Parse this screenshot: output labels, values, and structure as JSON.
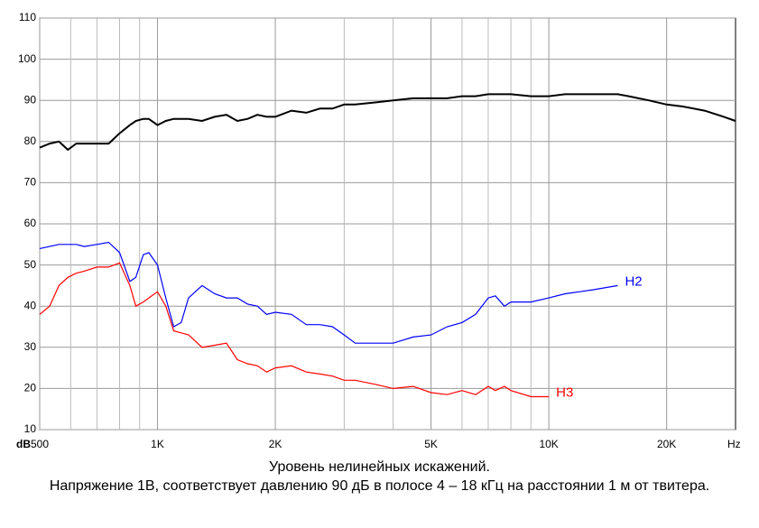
{
  "chart_data": {
    "type": "line",
    "title": "Уровень нелинейных искажений.",
    "subtitle": "Напряжение 1В, соответствует давлению 90 дБ в полосе 4 – 18 кГц на расстоянии 1 м от твитера.",
    "y_label": "dB",
    "x_label": "Hz",
    "log_x": true,
    "grid": true,
    "x": [
      500,
      530,
      560,
      590,
      620,
      650,
      700,
      750,
      800,
      850,
      880,
      920,
      950,
      1000,
      1050,
      1100,
      1150,
      1200,
      1300,
      1400,
      1500,
      1600,
      1700,
      1800,
      1900,
      2000,
      2200,
      2400,
      2600,
      2800,
      3000,
      3200,
      3600,
      4000,
      4500,
      5000,
      5500,
      6000,
      6500,
      7000,
      7300,
      7700,
      8000,
      9000,
      10000,
      11000,
      12000,
      13000,
      15000,
      16000,
      18000,
      20000,
      22000,
      25000,
      28000,
      30000
    ],
    "series": [
      {
        "color": "#000000",
        "values": [
          78.5,
          79.5,
          80,
          78,
          79.5,
          79.5,
          79.5,
          79.5,
          82,
          84,
          85,
          85.5,
          85.5,
          84,
          85,
          85.5,
          85.5,
          85.5,
          85,
          86,
          86.5,
          85,
          85.5,
          86.5,
          86,
          86,
          87.5,
          87,
          88,
          88,
          89,
          89,
          89.5,
          90,
          90.5,
          90.5,
          90.5,
          91,
          91,
          91.5,
          91.5,
          91.5,
          91.5,
          91,
          91,
          91.5,
          91.5,
          91.5,
          91.5,
          91,
          90,
          89,
          88.5,
          87.5,
          86,
          85
        ]
      },
      {
        "name": "H2",
        "color": "#0000ff",
        "values": [
          54,
          54.5,
          55,
          55,
          55,
          54.5,
          55,
          55.5,
          53,
          46,
          47,
          52.5,
          53,
          50,
          42,
          35,
          36,
          42,
          45,
          43,
          42,
          42,
          40.5,
          40,
          38,
          38.5,
          38,
          35.5,
          35.5,
          35,
          33,
          31,
          31,
          31,
          32.5,
          33,
          35,
          36,
          38,
          42,
          42.5,
          40,
          41,
          41,
          42,
          43,
          43.5,
          44,
          45,
          null,
          null,
          null,
          null,
          null,
          null,
          null
        ]
      },
      {
        "name": "H3",
        "color": "#ff0000",
        "values": [
          38,
          40,
          45,
          47,
          48,
          48.5,
          49.5,
          49.5,
          50.5,
          45,
          40,
          41,
          42,
          43.5,
          40,
          34,
          33.5,
          33,
          30,
          30.5,
          31,
          27,
          26,
          25.5,
          24,
          25,
          25.5,
          24,
          23.5,
          23,
          22,
          22,
          21,
          20,
          20.5,
          19,
          18.5,
          19.5,
          18.5,
          20.5,
          19.5,
          20.5,
          19.5,
          18,
          18,
          null,
          null,
          null,
          null,
          null,
          null,
          null,
          null,
          null,
          null,
          null
        ]
      }
    ],
    "xlim": [
      500,
      30000
    ],
    "xticks": [
      500,
      {
        "value": 1000,
        "label": "1K"
      },
      {
        "value": 2000,
        "label": "2K"
      },
      {
        "value": 5000,
        "label": "5K"
      },
      {
        "value": 10000,
        "label": "10K"
      },
      {
        "value": 20000,
        "label": "20K"
      }
    ],
    "xminor": [
      600,
      700,
      800,
      900,
      3000,
      4000,
      6000,
      7000,
      8000,
      9000
    ],
    "ylim": [
      10,
      110
    ],
    "yticks": [
      10,
      20,
      30,
      40,
      50,
      60,
      70,
      80,
      90,
      100,
      110
    ]
  }
}
